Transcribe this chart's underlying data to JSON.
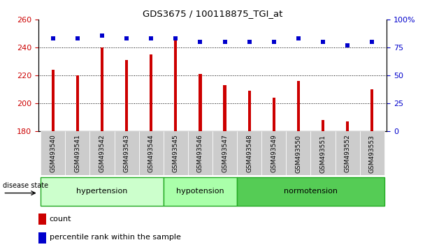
{
  "title": "GDS3675 / 100118875_TGI_at",
  "samples": [
    "GSM493540",
    "GSM493541",
    "GSM493542",
    "GSM493543",
    "GSM493544",
    "GSM493545",
    "GSM493546",
    "GSM493547",
    "GSM493548",
    "GSM493549",
    "GSM493550",
    "GSM493551",
    "GSM493552",
    "GSM493553"
  ],
  "bar_values": [
    224,
    220,
    240,
    231,
    235,
    248,
    221,
    213,
    209,
    204,
    216,
    188,
    187,
    210
  ],
  "dot_values": [
    83,
    83,
    86,
    83,
    83,
    83,
    80,
    80,
    80,
    80,
    83,
    80,
    77,
    80
  ],
  "ylim_left": [
    180,
    260
  ],
  "ylim_right": [
    0,
    100
  ],
  "yticks_left": [
    180,
    200,
    220,
    240,
    260
  ],
  "yticks_right": [
    0,
    25,
    50,
    75,
    100
  ],
  "bar_color": "#cc0000",
  "dot_color": "#0000cc",
  "groups": [
    {
      "label": "hypertension",
      "start": 0,
      "end": 5
    },
    {
      "label": "hypotension",
      "start": 5,
      "end": 8
    },
    {
      "label": "normotension",
      "start": 8,
      "end": 14
    }
  ],
  "group_colors": [
    "#ccffcc",
    "#aaffaa",
    "#55cc55"
  ],
  "group_border": "#22aa22",
  "disease_state_label": "disease state",
  "legend_count": "count",
  "legend_percentile": "percentile rank within the sample",
  "bg_color": "#ffffff",
  "tick_label_bg": "#cccccc",
  "bar_width": 0.12
}
